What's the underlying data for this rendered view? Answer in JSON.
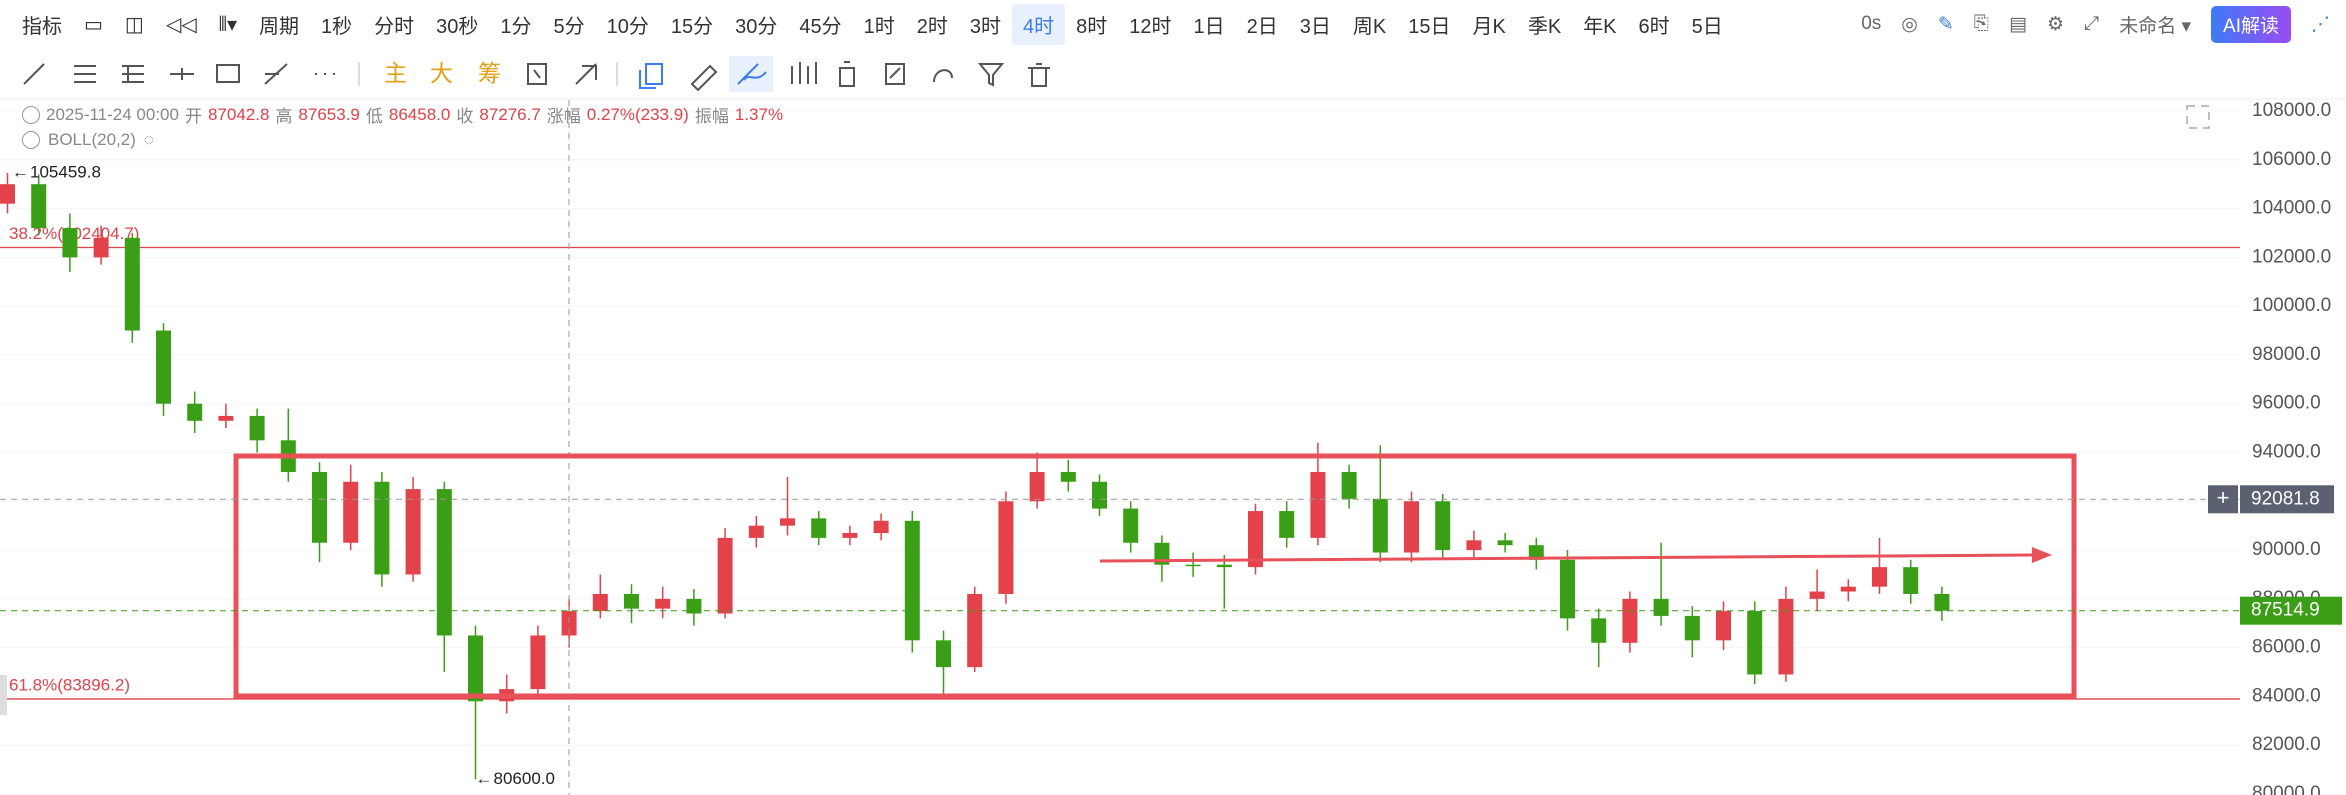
{
  "toolbar": {
    "indicator": "指标",
    "period": "周期",
    "intervals": [
      "1秒",
      "分时",
      "30秒",
      "1分",
      "5分",
      "10分",
      "15分",
      "30分",
      "45分",
      "1时",
      "2时",
      "3时",
      "4时",
      "8时",
      "12时",
      "1日",
      "2日",
      "3日",
      "周K",
      "15日",
      "月K",
      "季K",
      "年K",
      "6时",
      "5日"
    ],
    "active_interval": 12,
    "timer": "0s",
    "layout_name": "未命名",
    "ai_button": "AI解读"
  },
  "tools": {
    "main": "主",
    "large": "大",
    "chips": "筹"
  },
  "info": {
    "datetime": "2025-11-24 00:00",
    "open_label": "开",
    "open": "87042.8",
    "high_label": "高",
    "high": "87653.9",
    "low_label": "低",
    "low": "86458.0",
    "close_label": "收",
    "close": "87276.7",
    "change_label": "涨幅",
    "change": "0.27%(233.9)",
    "amplitude_label": "振幅",
    "amplitude": "1.37%",
    "indicator": "BOLL(20,2)"
  },
  "chart_data": {
    "type": "candlestick",
    "open": [
      104200,
      105000,
      103200,
      102000,
      102800,
      99000,
      96000,
      95300,
      95500,
      94500,
      93200,
      90300,
      92800,
      89000,
      92500,
      86500,
      83800,
      84300,
      86500,
      87500,
      88200,
      87600,
      88000,
      87400,
      90500,
      91000,
      91300,
      90500,
      90700,
      91200,
      86300,
      85200,
      88200,
      92000,
      93200,
      92800,
      91700,
      90300,
      89400,
      89400,
      89300,
      91600,
      90500,
      93200,
      92100,
      89900,
      92000,
      90000,
      90400,
      90200,
      89600,
      87200,
      86200,
      88000,
      87300,
      86300,
      87500,
      84900,
      88000,
      88300,
      88500,
      89300,
      88200
    ],
    "high": [
      105459.8,
      105400,
      103800,
      103300,
      103000,
      99300,
      96500,
      96000,
      95800,
      95800,
      93600,
      93500,
      93200,
      93000,
      92800,
      86900,
      84900,
      86900,
      88000,
      89000,
      88600,
      88500,
      88400,
      90900,
      91400,
      93000,
      91600,
      91000,
      91500,
      91600,
      86700,
      88500,
      92400,
      94000,
      93700,
      93100,
      92000,
      90600,
      89900,
      89800,
      91900,
      92000,
      94400,
      93500,
      94300,
      92400,
      92300,
      90800,
      90700,
      90500,
      90000,
      87600,
      88300,
      90300,
      87700,
      87900,
      87900,
      88500,
      89200,
      88800,
      90500,
      89600,
      88500
    ],
    "low": [
      103800,
      102900,
      101400,
      101700,
      98500,
      95500,
      94800,
      95000,
      94000,
      92800,
      89500,
      90000,
      88500,
      88700,
      85000,
      80600,
      83300,
      84000,
      86000,
      87200,
      87000,
      87200,
      86900,
      87200,
      90100,
      90600,
      90200,
      90200,
      90400,
      85800,
      84000,
      85000,
      87800,
      91700,
      92400,
      91400,
      89900,
      88700,
      88900,
      87600,
      89000,
      90100,
      90200,
      91700,
      89500,
      89500,
      89600,
      89700,
      89900,
      89200,
      86700,
      85200,
      85800,
      86900,
      85600,
      85900,
      84500,
      84600,
      87500,
      87900,
      88200,
      87800,
      87100
    ],
    "close": [
      105000,
      103200,
      102000,
      102800,
      99000,
      96000,
      95300,
      95500,
      94500,
      93200,
      90300,
      92800,
      89000,
      92500,
      86500,
      83800,
      84300,
      86500,
      87500,
      88200,
      87600,
      88000,
      87400,
      90500,
      91000,
      91300,
      90500,
      90700,
      91200,
      86300,
      85200,
      88200,
      92000,
      93200,
      92800,
      91700,
      90300,
      89400,
      89400,
      89300,
      91600,
      90500,
      93200,
      92100,
      89900,
      92000,
      90000,
      90400,
      90200,
      89600,
      87200,
      86200,
      88000,
      87300,
      86300,
      87500,
      84900,
      88000,
      88300,
      88500,
      89300,
      88200,
      87514.9
    ],
    "up_color": "#e3424a",
    "down_color": "#3a9e17",
    "ylim": [
      80000,
      108000
    ],
    "yticks": [
      {
        "value": 80000,
        "label": "80000.0"
      },
      {
        "value": 82000,
        "label": "82000.0"
      },
      {
        "value": 84000,
        "label": "84000.0"
      },
      {
        "value": 86000,
        "label": "86000.0"
      },
      {
        "value": 88000,
        "label": "88000.0"
      },
      {
        "value": 90000,
        "label": "90000.0"
      },
      {
        "value": 92000,
        "label": "92000.0"
      },
      {
        "value": 94000,
        "label": "94000.0"
      },
      {
        "value": 96000,
        "label": "96000.0"
      },
      {
        "value": 98000,
        "label": "98000.0"
      },
      {
        "value": 100000,
        "label": "100000.0"
      },
      {
        "value": 102000,
        "label": "102000.0"
      },
      {
        "value": 104000,
        "label": "104000.0"
      },
      {
        "value": 106000,
        "label": "106000.0"
      },
      {
        "value": 108000,
        "label": "108000.0"
      }
    ],
    "grid": true,
    "levels": [
      {
        "value": 102404.7,
        "label": "38.2%(102404.7)"
      },
      {
        "value": 83896.2,
        "label": "61.8%(83896.2)"
      }
    ],
    "crosshair": 92081.8,
    "last_price": 87514.9,
    "min_label": "80600.0"
  }
}
